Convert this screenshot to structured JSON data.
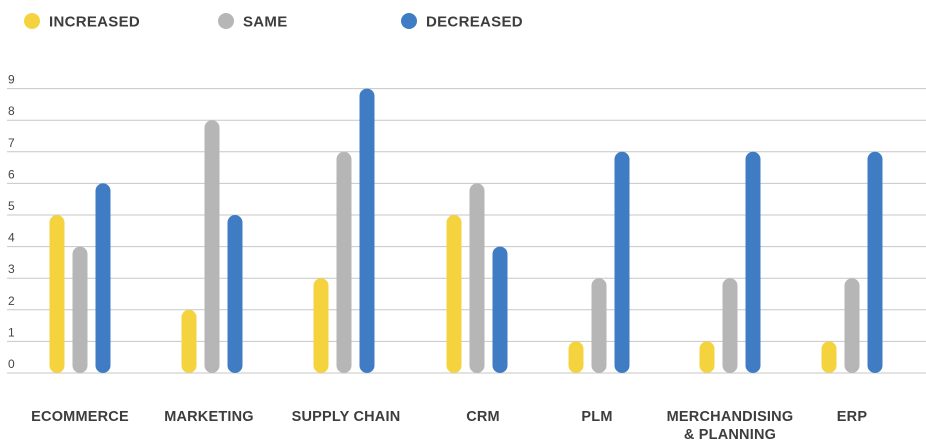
{
  "chart_data": {
    "type": "bar",
    "title": "",
    "xlabel": "",
    "ylabel": "",
    "categories": [
      [
        "ECOMMERCE"
      ],
      [
        "MARKETING"
      ],
      [
        "SUPPLY CHAIN"
      ],
      [
        "CRM"
      ],
      [
        "PLM"
      ],
      [
        "MERCHANDISING",
        "& PLANNING"
      ],
      [
        "ERP"
      ]
    ],
    "series": [
      {
        "name": "INCREASED",
        "color": "#f5d33e",
        "values": [
          5,
          2,
          3,
          5,
          1,
          1,
          1
        ]
      },
      {
        "name": "SAME",
        "color": "#b6b6b6",
        "values": [
          4,
          8,
          7,
          6,
          3,
          3,
          3
        ]
      },
      {
        "name": "DECREASED",
        "color": "#3f7cc4",
        "values": [
          6,
          5,
          9,
          4,
          7,
          7,
          7
        ]
      }
    ],
    "ylim": [
      0,
      9
    ],
    "yticks": [
      "0",
      "1",
      "2",
      "3",
      "4",
      "5",
      "6",
      "7",
      "8",
      "9"
    ],
    "grid": true,
    "legend_position": "top-left"
  }
}
